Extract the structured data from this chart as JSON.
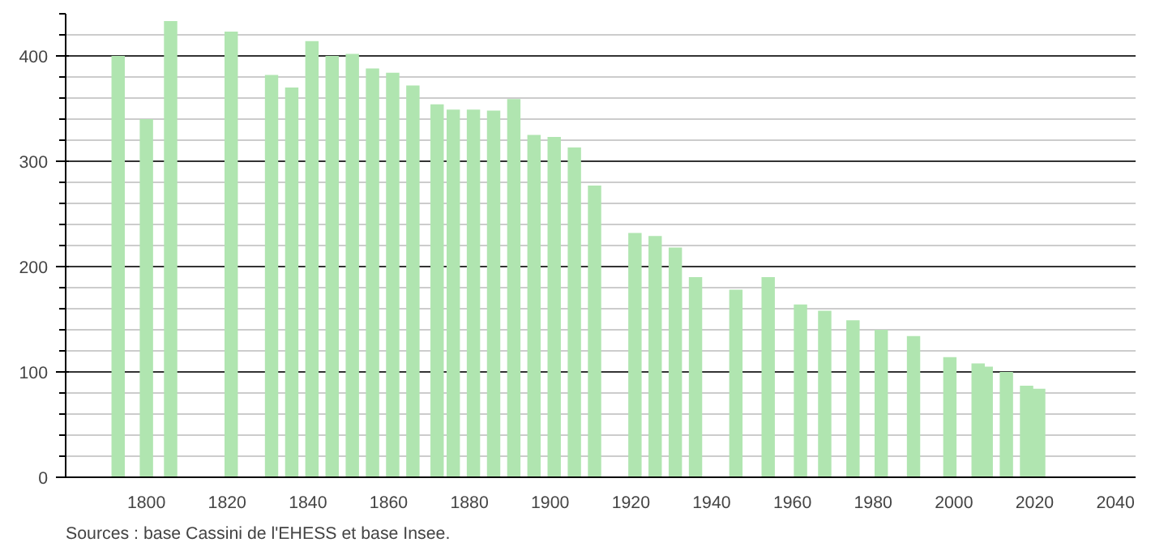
{
  "chart_data": {
    "type": "bar",
    "x": [
      1793,
      1800,
      1806,
      1821,
      1831,
      1836,
      1841,
      1846,
      1851,
      1856,
      1861,
      1866,
      1872,
      1876,
      1881,
      1886,
      1891,
      1896,
      1901,
      1906,
      1911,
      1921,
      1926,
      1931,
      1936,
      1946,
      1954,
      1962,
      1968,
      1975,
      1982,
      1990,
      1999,
      2006,
      2008,
      2013,
      2018,
      2021
    ],
    "values": [
      400,
      340,
      433,
      423,
      382,
      370,
      414,
      400,
      402,
      388,
      384,
      372,
      354,
      349,
      349,
      348,
      359,
      325,
      323,
      313,
      277,
      232,
      229,
      218,
      190,
      178,
      190,
      164,
      158,
      149,
      140,
      134,
      114,
      108,
      105,
      100,
      87,
      84
    ],
    "color": "#b0e5b0",
    "xlim": [
      1780,
      2045
    ],
    "xticks": [
      1800,
      1820,
      1840,
      1860,
      1880,
      1900,
      1920,
      1940,
      1960,
      1980,
      2000,
      2020,
      2040
    ],
    "ylim": [
      0,
      440
    ],
    "yticks": [
      0,
      100,
      200,
      300,
      400
    ],
    "grid": "y",
    "annotations": [
      "Sources : base Cassini de l'EHESS et base Insee."
    ]
  }
}
